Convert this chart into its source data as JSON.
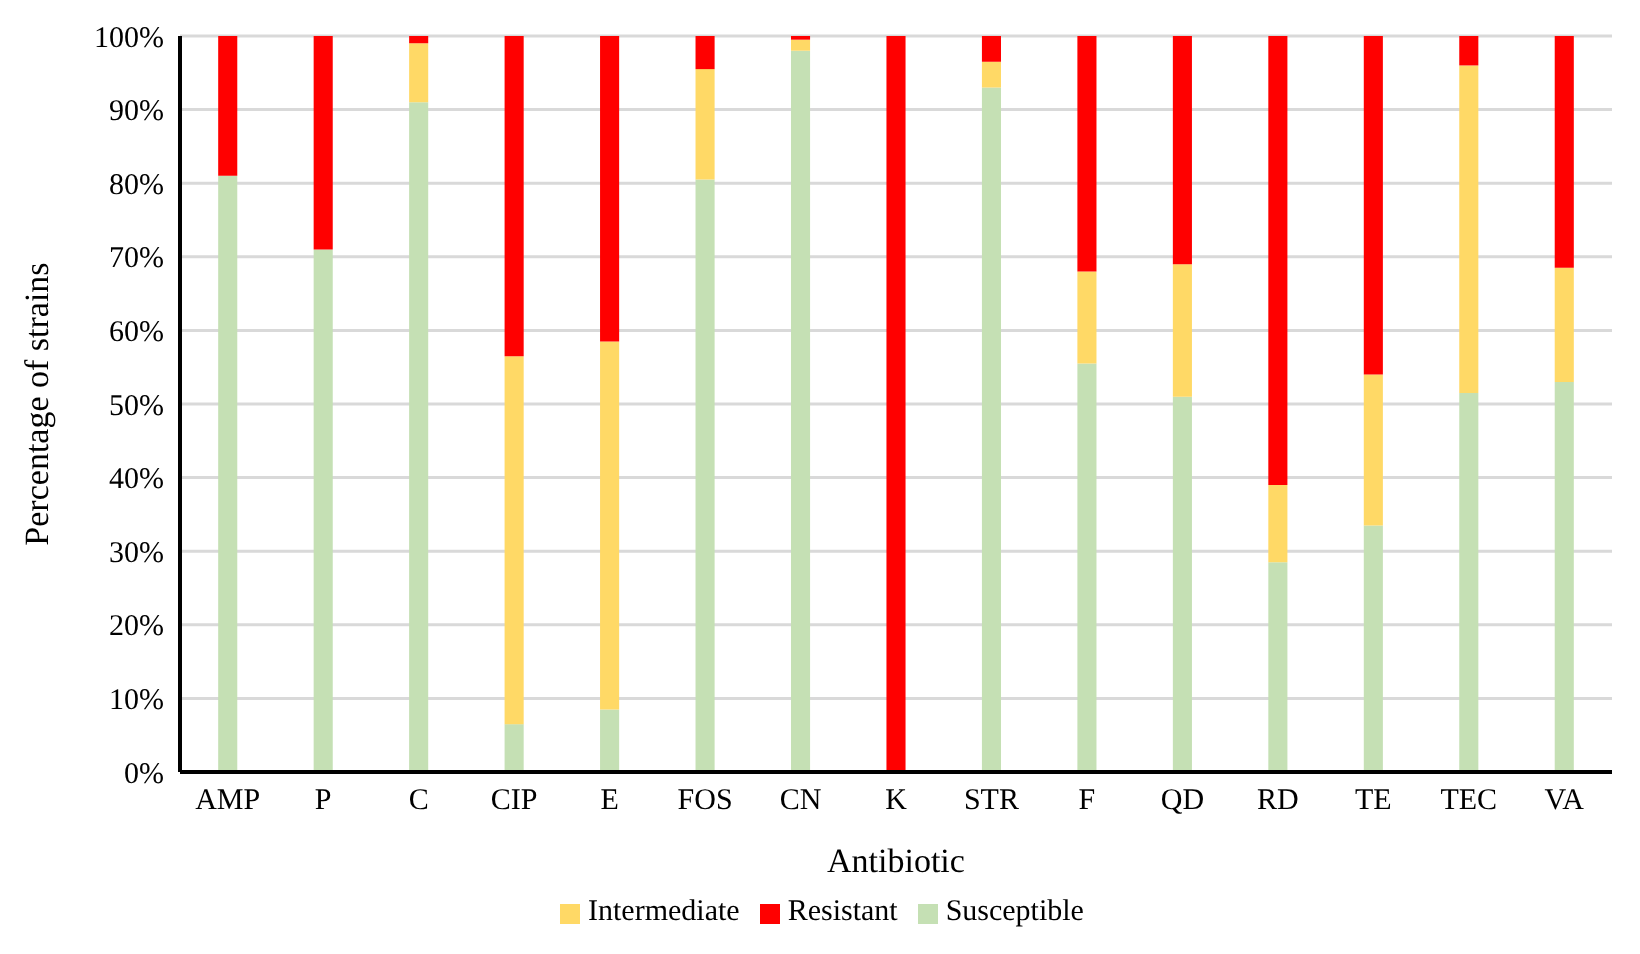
{
  "chart_data": {
    "type": "bar",
    "stacked": true,
    "xlabel": "Antibiotic",
    "ylabel": "Percentage of strains",
    "categories": [
      "AMP",
      "P",
      "C",
      "CIP",
      "E",
      "FOS",
      "CN",
      "K",
      "STR",
      "F",
      "QD",
      "RD",
      "TE",
      "TEC",
      "VA"
    ],
    "series": [
      {
        "name": "Susceptible",
        "color": "#c5e0b4",
        "values": [
          81,
          71,
          91,
          6.5,
          8.5,
          80.5,
          98,
          0,
          93,
          55.5,
          51,
          28.5,
          33.5,
          51.5,
          53
        ]
      },
      {
        "name": "Intermediate",
        "color": "#ffd966",
        "values": [
          0,
          0,
          8,
          50,
          50,
          15,
          1.5,
          0,
          3.5,
          12.5,
          18,
          10.5,
          20.5,
          44.5,
          15.5
        ]
      },
      {
        "name": "Resistant",
        "color": "#ff0000",
        "values": [
          19,
          29,
          1,
          43.5,
          41.5,
          4.5,
          0.5,
          100,
          3.5,
          32,
          31,
          61,
          46,
          4,
          31.5
        ]
      }
    ],
    "ylim": [
      0,
      100
    ],
    "yticks": [
      {
        "value": 0,
        "label": "0%"
      },
      {
        "value": 10,
        "label": "10%"
      },
      {
        "value": 20,
        "label": "20%"
      },
      {
        "value": 30,
        "label": "30%"
      },
      {
        "value": 40,
        "label": "40%"
      },
      {
        "value": 50,
        "label": "50%"
      },
      {
        "value": 60,
        "label": "60%"
      },
      {
        "value": 70,
        "label": "70%"
      },
      {
        "value": 80,
        "label": "80%"
      },
      {
        "value": 90,
        "label": "90%"
      },
      {
        "value": 100,
        "label": "100%"
      }
    ],
    "grid": "y",
    "legend": "bottom"
  }
}
